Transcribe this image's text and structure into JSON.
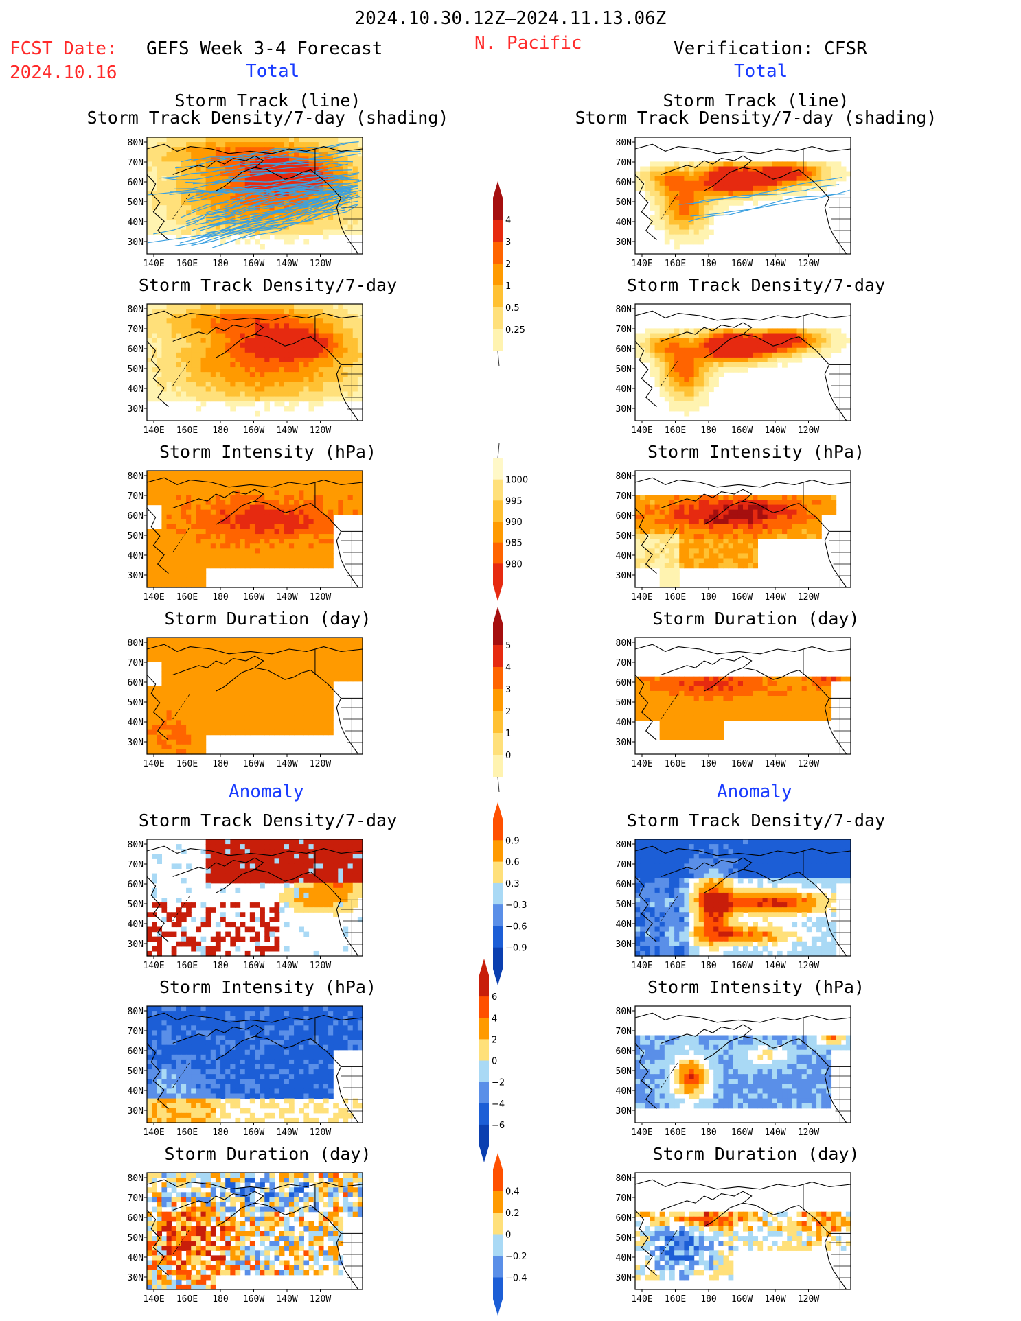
{
  "header": {
    "period": "2024.10.30.12Z–2024.11.13.06Z",
    "region": "N. Pacific",
    "fcst_label": "FCST Date:",
    "fcst_date": "2024.10.16",
    "left_title": "GEFS Week 3-4 Forecast",
    "right_title": "Verification: CFSR",
    "total_label": "Total",
    "anomaly_label": "Anomaly"
  },
  "panels": {
    "storm_track_title_1": "Storm Track (line)",
    "storm_track_title_2": "Storm Track Density/7-day (shading)",
    "density_title": "Storm Track Density/7-day",
    "intensity_title": "Storm Intensity (hPa)",
    "duration_title": "Storm Duration (day)"
  },
  "axes": {
    "lat_labels": [
      "80N",
      "70N",
      "60N",
      "50N",
      "40N",
      "30N"
    ],
    "lon_labels": [
      "140E",
      "160E",
      "180",
      "160W",
      "140W",
      "120W"
    ]
  },
  "colorbars": {
    "density": [
      "0.25",
      "0.5",
      "1",
      "2",
      "3",
      "4"
    ],
    "intensity": [
      "1000",
      "995",
      "990",
      "985",
      "980"
    ],
    "duration": [
      "0",
      "1",
      "2",
      "3",
      "4",
      "5"
    ],
    "density_anom": [
      "0.9",
      "0.6",
      "0.3",
      "−0.3",
      "−0.6",
      "−0.9"
    ],
    "intensity_anom": [
      "6",
      "4",
      "2",
      "0",
      "−2",
      "−4",
      "−6"
    ],
    "duration_anom": [
      "0.4",
      "0.2",
      "0",
      "−0.2",
      "−0.4"
    ]
  },
  "colors": {
    "warm": [
      "#fff3b0",
      "#ffe07a",
      "#ffc133",
      "#ff9a00",
      "#ff6400",
      "#e62a10",
      "#a50f0f"
    ],
    "anom": [
      "#1c5ed6",
      "#5a8fe8",
      "#a9d9f5",
      "#ffffff",
      "#ffe07a",
      "#ff9a00",
      "#ff5000",
      "#c81e0a"
    ],
    "track_line": "#3aa0e0",
    "label_red": "#ff2a2a",
    "label_blue": "#1a3cff"
  }
}
